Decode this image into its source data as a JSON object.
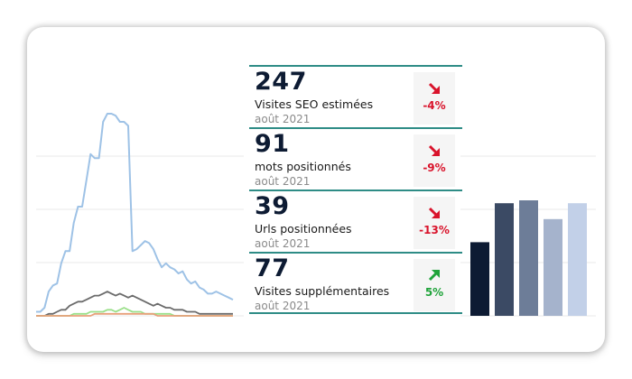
{
  "colors": {
    "accent_teal": "#2e8c86",
    "negative": "#d9132b",
    "positive": "#1fa33a"
  },
  "kpis": [
    {
      "value": "247",
      "label": "Visites SEO estimées",
      "date": "août 2021",
      "delta": "-4%",
      "direction": "down"
    },
    {
      "value": "91",
      "label": "mots positionnés",
      "date": "août 2021",
      "delta": "-9%",
      "direction": "down"
    },
    {
      "value": "39",
      "label": "Urls positionnées",
      "date": "août 2021",
      "delta": "-13%",
      "direction": "down"
    },
    {
      "value": "77",
      "label": "Visites supplémentaires",
      "date": "août 2021",
      "delta": "5%",
      "direction": "up"
    }
  ],
  "chart_data": [
    {
      "type": "line",
      "grid": true,
      "ylim": [
        0,
        100
      ],
      "series": [
        {
          "color": "#9ec2e6",
          "values": [
            2,
            2,
            4,
            12,
            15,
            16,
            26,
            32,
            32,
            46,
            54,
            54,
            67,
            80,
            78,
            78,
            96,
            100,
            100,
            99,
            96,
            96,
            94,
            32,
            33,
            35,
            37,
            36,
            33,
            28,
            24,
            26,
            24,
            23,
            21,
            22,
            18,
            16,
            17,
            14,
            13,
            11,
            11,
            12,
            11,
            10,
            9,
            8
          ]
        },
        {
          "color": "#6b6b6b",
          "values": [
            0,
            0,
            0,
            1,
            1,
            2,
            3,
            3,
            5,
            6,
            7,
            7,
            8,
            9,
            10,
            10,
            11,
            12,
            11,
            10,
            11,
            10,
            9,
            10,
            9,
            8,
            7,
            6,
            5,
            6,
            5,
            4,
            4,
            3,
            3,
            3,
            2,
            2,
            2,
            1,
            1,
            1,
            1,
            1,
            1,
            1,
            1,
            1
          ]
        },
        {
          "color": "#9be08a",
          "values": [
            0,
            0,
            0,
            0,
            0,
            0,
            0,
            0,
            0,
            1,
            1,
            1,
            1,
            2,
            2,
            2,
            2,
            3,
            3,
            2,
            3,
            4,
            3,
            2,
            2,
            2,
            1,
            1,
            1,
            1,
            1,
            1,
            1,
            0,
            0,
            0,
            0,
            0,
            0,
            0,
            0,
            0,
            0,
            0,
            0,
            0,
            0,
            0
          ]
        },
        {
          "color": "#e8a07a",
          "values": [
            0,
            0,
            0,
            0,
            0,
            0,
            0,
            0,
            0,
            0,
            0,
            0,
            0,
            0,
            1,
            1,
            1,
            1,
            1,
            1,
            1,
            1,
            1,
            1,
            1,
            1,
            1,
            1,
            1,
            0,
            0,
            0,
            0,
            0,
            0,
            0,
            0,
            0,
            0,
            0,
            0,
            0,
            0,
            0,
            0,
            0,
            0,
            0
          ]
        }
      ]
    },
    {
      "type": "bar",
      "grid": true,
      "ylim": [
        0,
        100
      ],
      "values": [
        51,
        78,
        80,
        67,
        78
      ],
      "colors": [
        "#0d1b33",
        "#3b4a64",
        "#6d7d98",
        "#a5b3cc",
        "#c2d0e8"
      ]
    }
  ]
}
